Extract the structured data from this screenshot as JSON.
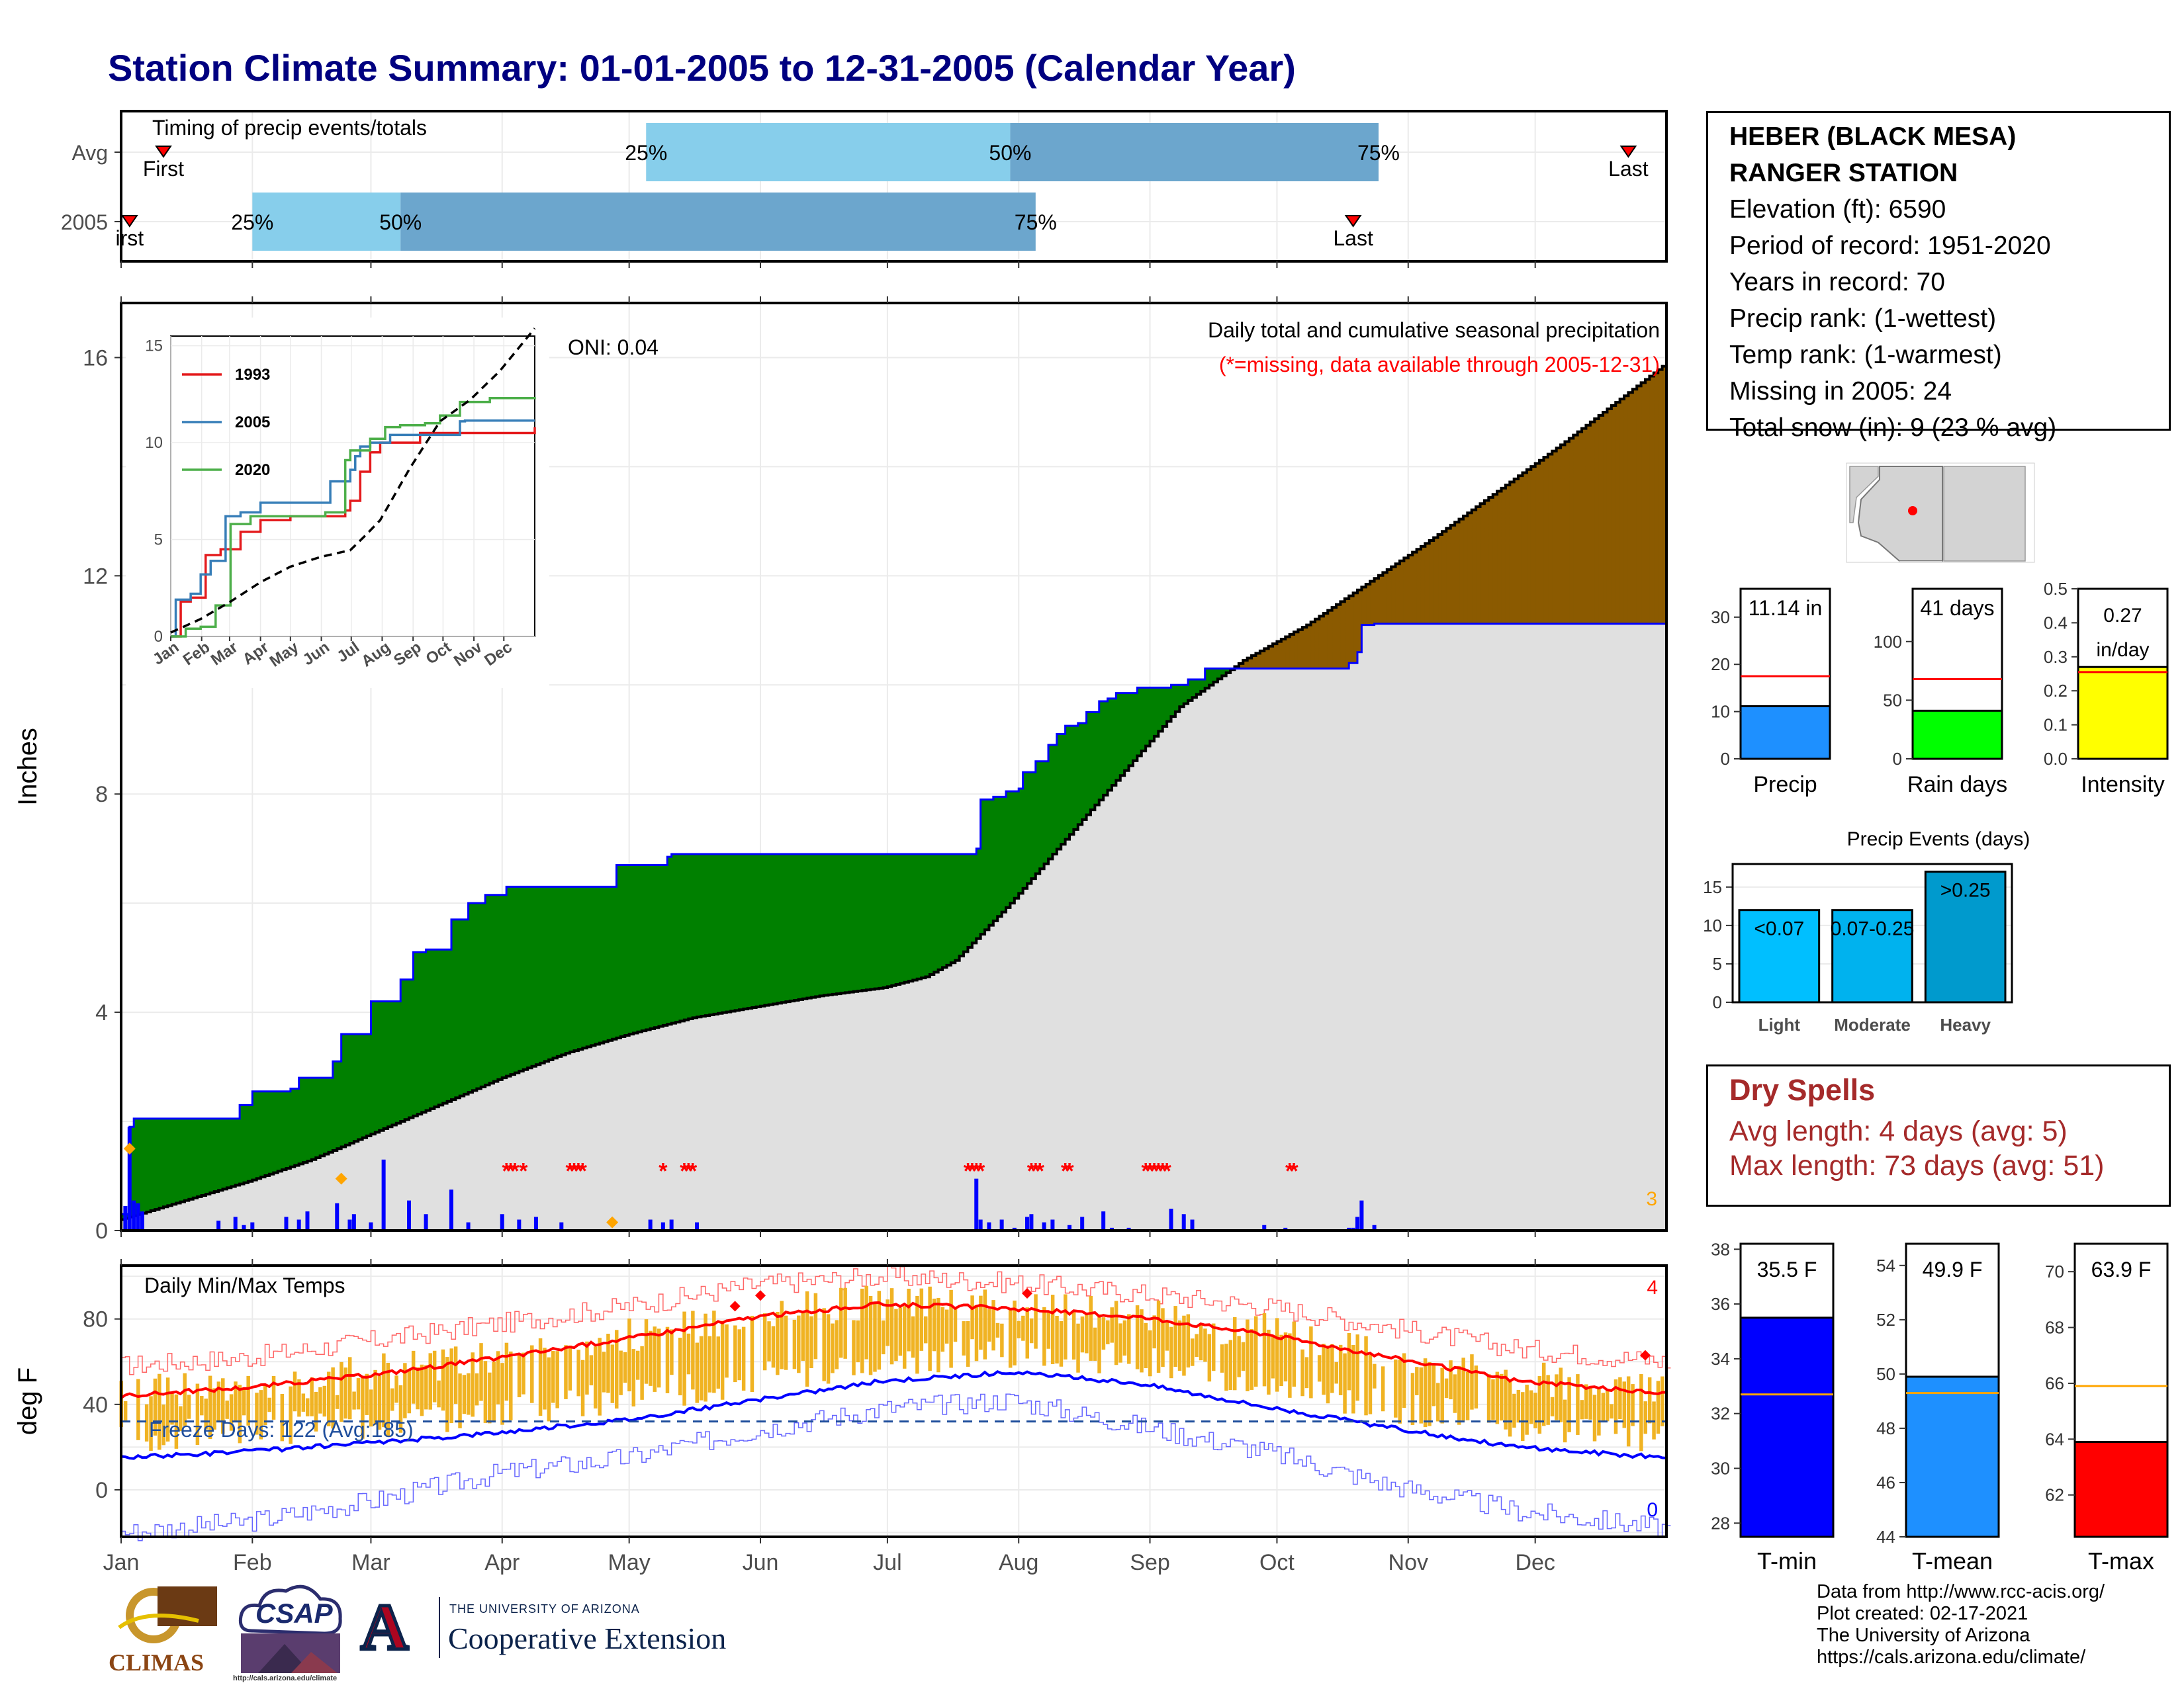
{
  "title": "Station Climate Summary: 01-01-2005 to 12-31-2005 (Calendar Year)",
  "station": {
    "name_line1": "HEBER (BLACK MESA)",
    "name_line2": "RANGER STATION",
    "elevation": "Elevation (ft): 6590",
    "period": "Period of record: 1951-2020",
    "years": "Years in record: 70",
    "precip_rank": "Precip rank:  (1-wettest)",
    "temp_rank": "Temp rank:  (1-warmest)",
    "missing": "Missing in 2005: 24",
    "snow": "Total snow (in): 9 (23 % avg)"
  },
  "dry_spells": {
    "heading": "Dry Spells",
    "avg": "Avg length: 4 days (avg: 5)",
    "max": "Max length: 73 days (avg: 51)"
  },
  "credits": [
    "Data from http://www.rcc-acis.org/",
    "Plot created: 02-17-2021",
    "The University of Arizona",
    "https://cals.arizona.edu/climate/"
  ],
  "logos": {
    "climas": "CLIMAS",
    "csap": "CSAP",
    "csap_url": "http://cals.arizona.edu/climate",
    "ua_small": "THE UNIVERSITY OF ARIZONA",
    "ua_big": "Cooperative Extension",
    "ua_letter": "A"
  },
  "colors": {
    "title": "#000080",
    "green": "#008000",
    "brown": "#8b5a00",
    "gray": "#e0e0e0",
    "blue": "#0000ff",
    "red": "#ff0000",
    "orange": "#f0b323",
    "light_blue": "#87ceeb",
    "mid_blue": "#6ca6cd"
  },
  "chart_data": [
    {
      "type": "bar",
      "name": "timing",
      "title": "Timing of precip events/totals",
      "categories": [
        "Avg",
        "2005"
      ],
      "months": [
        "Jan",
        "Feb",
        "Mar",
        "Apr",
        "May",
        "Jun",
        "Jul",
        "Aug",
        "Sep",
        "Oct",
        "Nov",
        "Dec"
      ],
      "rows": [
        {
          "label": "Avg",
          "first_doy": 10,
          "q25_doy": 124,
          "q50_doy": 210,
          "q75_doy": 297,
          "last_doy": 356,
          "labels": [
            "First",
            "25%",
            "50%",
            "75%",
            "Last"
          ]
        },
        {
          "label": "2005",
          "first_doy": 2,
          "q25_doy": 31,
          "q50_doy": 66,
          "q75_doy": 216,
          "last_doy": 291,
          "labels": [
            "irst",
            "25%",
            "50%",
            "75%",
            "Last"
          ]
        }
      ]
    },
    {
      "type": "area",
      "name": "precip",
      "title": "Daily total and cumulative seasonal precipitation",
      "subtitle": "(*=missing, data available through 2005-12-31)",
      "annotation": "ONI: 0.04",
      "ylabel": "Inches",
      "ylim": [
        0,
        17
      ],
      "yticks": [
        0,
        4,
        8,
        12,
        16
      ],
      "corner_count": "3",
      "observed_cumulative_doy": [
        0,
        2,
        3,
        23,
        28,
        31,
        40,
        42,
        46,
        50,
        52,
        58,
        59,
        66,
        69,
        72,
        74,
        78,
        82,
        86,
        91,
        116,
        117,
        129,
        130,
        140,
        150,
        160,
        170,
        180,
        190,
        200,
        202,
        203,
        206,
        209,
        212,
        213,
        216,
        219,
        221,
        223,
        226,
        228,
        231,
        233,
        235,
        240,
        248,
        252,
        256,
        260,
        290,
        292,
        293,
        296,
        365
      ],
      "observed_cumulative_in": [
        0.3,
        1.9,
        2.05,
        2.05,
        2.3,
        2.55,
        2.6,
        2.8,
        2.8,
        3.1,
        3.6,
        3.6,
        4.2,
        4.6,
        5.1,
        5.15,
        5.15,
        5.7,
        6.0,
        6.15,
        6.3,
        6.3,
        6.7,
        6.85,
        6.9,
        6.9,
        6.9,
        6.9,
        6.9,
        6.9,
        6.9,
        6.9,
        7.0,
        7.9,
        7.95,
        8.05,
        8.1,
        8.4,
        8.6,
        8.9,
        9.1,
        9.25,
        9.3,
        9.5,
        9.7,
        9.75,
        9.85,
        9.95,
        10.0,
        10.1,
        10.3,
        10.3,
        10.4,
        10.6,
        11.1,
        11.12,
        11.14
      ],
      "avg_cumulative_doy": [
        0,
        15,
        30,
        45,
        60,
        75,
        90,
        105,
        120,
        135,
        150,
        165,
        180,
        190,
        197,
        202,
        210,
        220,
        230,
        240,
        250,
        265,
        280,
        295,
        310,
        325,
        340,
        355,
        365
      ],
      "avg_cumulative_in": [
        0.2,
        0.55,
        0.9,
        1.3,
        1.8,
        2.3,
        2.8,
        3.25,
        3.6,
        3.9,
        4.1,
        4.3,
        4.45,
        4.65,
        4.95,
        5.35,
        6.0,
        6.9,
        7.8,
        8.7,
        9.6,
        10.45,
        11.1,
        11.9,
        12.7,
        13.55,
        14.4,
        15.3,
        15.9
      ],
      "daily_doy": [
        1,
        2,
        3,
        4,
        5,
        23,
        27,
        29,
        31,
        39,
        42,
        44,
        51,
        54,
        55,
        59,
        62,
        68,
        72,
        78,
        82,
        90,
        94,
        98,
        104,
        125,
        128,
        130,
        136,
        202,
        203,
        205,
        208,
        211,
        214,
        215,
        218,
        220,
        224,
        227,
        232,
        234,
        238,
        248,
        251,
        253,
        270,
        275,
        290,
        291,
        292,
        293,
        296
      ],
      "daily_in": [
        0.45,
        1.9,
        0.55,
        0.5,
        0.35,
        0.18,
        0.25,
        0.1,
        0.15,
        0.25,
        0.2,
        0.35,
        0.5,
        0.2,
        0.3,
        0.15,
        1.3,
        0.55,
        0.3,
        0.75,
        0.15,
        0.3,
        0.2,
        0.25,
        0.15,
        0.2,
        0.15,
        0.2,
        0.15,
        0.95,
        0.2,
        0.15,
        0.2,
        0.05,
        0.25,
        0.3,
        0.15,
        0.2,
        0.1,
        0.25,
        0.35,
        0.05,
        0.05,
        0.4,
        0.3,
        0.2,
        0.1,
        0.05,
        0.05,
        0.05,
        0.25,
        0.55,
        0.1
      ],
      "missing_marks_doy": [
        91,
        92,
        93,
        95,
        106,
        107,
        108,
        109,
        128,
        133,
        134,
        135,
        200,
        201,
        202,
        203,
        215,
        216,
        217,
        223,
        224,
        242,
        243,
        244,
        245,
        246,
        247,
        276,
        277
      ]
    },
    {
      "type": "line",
      "name": "inset",
      "series": [
        {
          "name": "1993",
          "color": "#e41a1c",
          "x": [
            0,
            10,
            20,
            35,
            50,
            70,
            90,
            120,
            160,
            175,
            180,
            190,
            200,
            210,
            230,
            250,
            365
          ],
          "y": [
            0,
            1.8,
            2,
            4.2,
            4.5,
            5.4,
            6,
            6.2,
            6.2,
            6.5,
            7,
            8.5,
            9.5,
            10,
            10,
            10.5,
            10.8
          ]
        },
        {
          "name": "2005",
          "color": "#377eb8",
          "x": [
            0,
            5,
            20,
            30,
            40,
            55,
            70,
            90,
            140,
            160,
            180,
            185,
            190,
            200,
            220,
            240,
            270,
            290,
            295,
            365
          ],
          "y": [
            0,
            1.9,
            2.2,
            3.2,
            3.9,
            6.2,
            6.4,
            6.9,
            6.9,
            8,
            8.6,
            9.3,
            9.8,
            10,
            10.4,
            10.4,
            10.4,
            11.1,
            11.14,
            11.14
          ]
        },
        {
          "name": "2020",
          "color": "#4daf4a",
          "x": [
            0,
            15,
            30,
            45,
            60,
            80,
            120,
            155,
            175,
            180,
            200,
            215,
            230,
            255,
            270,
            290,
            320,
            365
          ],
          "y": [
            0,
            0.4,
            0.5,
            1.6,
            5.8,
            6.2,
            6.2,
            6.4,
            9.1,
            9.6,
            10.2,
            10.8,
            10.9,
            11,
            11.4,
            12.1,
            12.3,
            12.35
          ]
        },
        {
          "name": "",
          "color": "#000000",
          "x": [
            0,
            30,
            60,
            90,
            120,
            150,
            180,
            195,
            210,
            240,
            270,
            300,
            330,
            365
          ],
          "y": [
            0.2,
            0.9,
            1.8,
            2.8,
            3.6,
            4.1,
            4.45,
            5.2,
            6.0,
            8.7,
            11.1,
            12.2,
            13.7,
            15.9
          ]
        }
      ],
      "xticks": [
        "Jan",
        "Feb",
        "Mar",
        "Apr",
        "May",
        "Jun",
        "Jul",
        "Aug",
        "Sep",
        "Oct",
        "Nov",
        "Dec"
      ],
      "ylim": [
        0,
        15.5
      ],
      "yticks": [
        0,
        5,
        10,
        15
      ]
    },
    {
      "type": "line",
      "name": "temps",
      "title": "Daily Min/Max Temps",
      "ylabel": "deg F",
      "ylim": [
        -22,
        105
      ],
      "yticks": [
        0,
        40,
        80
      ],
      "annotation": "Freeze Days: 122 (Avg:185)",
      "freeze_line": 32,
      "count_top": "4",
      "count_bottom": "0",
      "normal_max_doy": [
        0,
        30,
        60,
        90,
        120,
        150,
        180,
        210,
        240,
        270,
        300,
        330,
        365
      ],
      "normal_max": [
        44,
        48,
        54,
        62,
        71,
        81,
        87,
        85,
        81,
        73,
        62,
        51,
        45
      ],
      "normal_min": [
        15,
        18,
        22,
        27,
        33,
        42,
        51,
        55,
        50,
        39,
        29,
        20,
        15
      ],
      "record_max": [
        58,
        62,
        70,
        78,
        86,
        96,
        100,
        97,
        92,
        86,
        76,
        66,
        60
      ],
      "record_min": [
        -20,
        -15,
        -5,
        8,
        15,
        28,
        38,
        42,
        30,
        18,
        2,
        -10,
        -18
      ],
      "record_marks_doy": [
        145,
        151,
        214,
        360
      ],
      "record_marks_value": [
        86,
        91,
        92,
        63
      ]
    },
    {
      "type": "bar",
      "name": "precip_gauges",
      "categories": [
        "Precip",
        "Rain days",
        "Intensity"
      ],
      "values": [
        11.14,
        41,
        0.27
      ],
      "averages": [
        17.5,
        68,
        0.255
      ],
      "value_labels": [
        "11.14 in",
        "41 days",
        "0.27 in/day"
      ],
      "ylims": [
        [
          0,
          36
        ],
        [
          0,
          145
        ],
        [
          0,
          0.5
        ]
      ],
      "yticks": [
        [
          0,
          10,
          20,
          30
        ],
        [
          0,
          50,
          100
        ],
        [
          0.0,
          0.1,
          0.2,
          0.3,
          0.4,
          0.5
        ]
      ],
      "colors": [
        "#1e90ff",
        "#00ff00",
        "#ffff00"
      ]
    },
    {
      "type": "bar",
      "name": "precip_events",
      "title": "Precip Events (days)",
      "categories": [
        "Light",
        "Moderate",
        "Heavy"
      ],
      "values": [
        12,
        12,
        17
      ],
      "bar_labels": [
        "<0.07",
        "0.07-0.25",
        ">0.25"
      ],
      "ylim": [
        0,
        18
      ],
      "yticks": [
        0,
        5,
        10,
        15
      ],
      "colors": [
        "#00bfff",
        "#00b2ee",
        "#009acd"
      ]
    },
    {
      "type": "bar",
      "name": "temp_gauges",
      "categories": [
        "T-min",
        "T-mean",
        "T-max"
      ],
      "values": [
        35.5,
        49.9,
        63.9
      ],
      "averages": [
        32.7,
        49.3,
        65.9
      ],
      "value_labels": [
        "35.5 F",
        "49.9 F",
        "63.9 F"
      ],
      "ylims": [
        [
          27.5,
          38.2
        ],
        [
          44,
          54.8
        ],
        [
          60.5,
          71
        ]
      ],
      "yticks": [
        [
          28,
          30,
          32,
          34,
          36,
          38
        ],
        [
          44,
          46,
          48,
          50,
          52,
          54
        ],
        [
          62,
          64,
          66,
          68,
          70
        ]
      ],
      "colors": [
        "#0000ff",
        "#1e90ff",
        "#ff0000"
      ]
    }
  ]
}
